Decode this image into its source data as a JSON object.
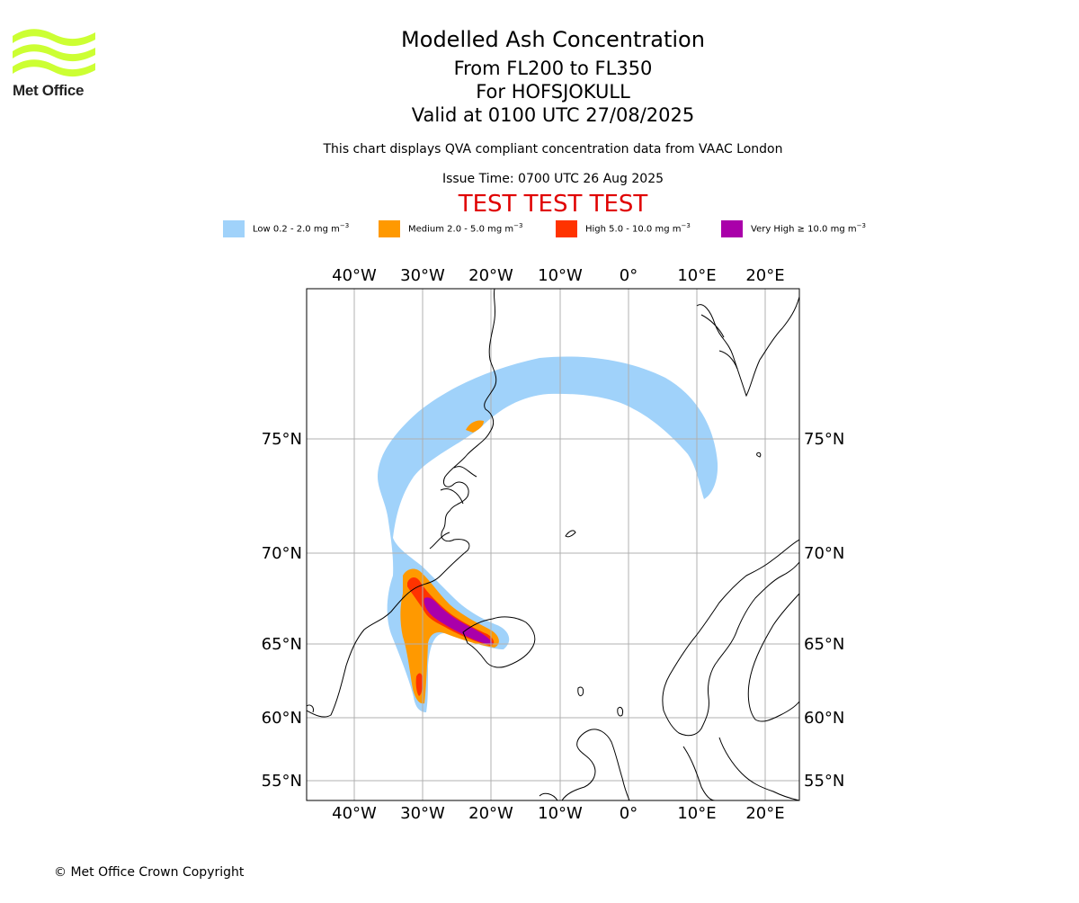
{
  "logo": {
    "text": "Met Office",
    "color": "#ccff33"
  },
  "title": {
    "main": "Modelled Ash Concentration",
    "levels": "From FL200 to FL350",
    "volcano": "For HOFSJOKULL",
    "valid": "Valid at 0100 UTC 27/08/2025"
  },
  "subtitle": "This chart displays QVA compliant concentration data from VAAC London",
  "issue_time": "Issue Time: 0700 UTC 26 Aug 2025",
  "test_banner": "TEST TEST TEST",
  "legend": [
    {
      "prefix": "Low 0.2 - 2.0 mg m",
      "color": "#a0d2fa"
    },
    {
      "prefix": "Medium 2.0 - 5.0 mg m",
      "color": "#ff9900"
    },
    {
      "prefix": "High 5.0 - 10.0 mg m",
      "color": "#ff3300"
    },
    {
      "prefix": "Very High ≥ 10.0 mg m",
      "color": "#aa00aa"
    }
  ],
  "legend_unit_exp": "−3",
  "map": {
    "lon_ticks": [
      "40°W",
      "30°W",
      "20°W",
      "10°W",
      "0°",
      "10°E",
      "20°E"
    ],
    "lat_ticks": [
      "75°N",
      "70°N",
      "65°N",
      "60°N",
      "55°N"
    ],
    "coastline_color": "#000000",
    "grid_color": "#b0b0b0"
  },
  "copyright": "© Met Office Crown Copyright"
}
